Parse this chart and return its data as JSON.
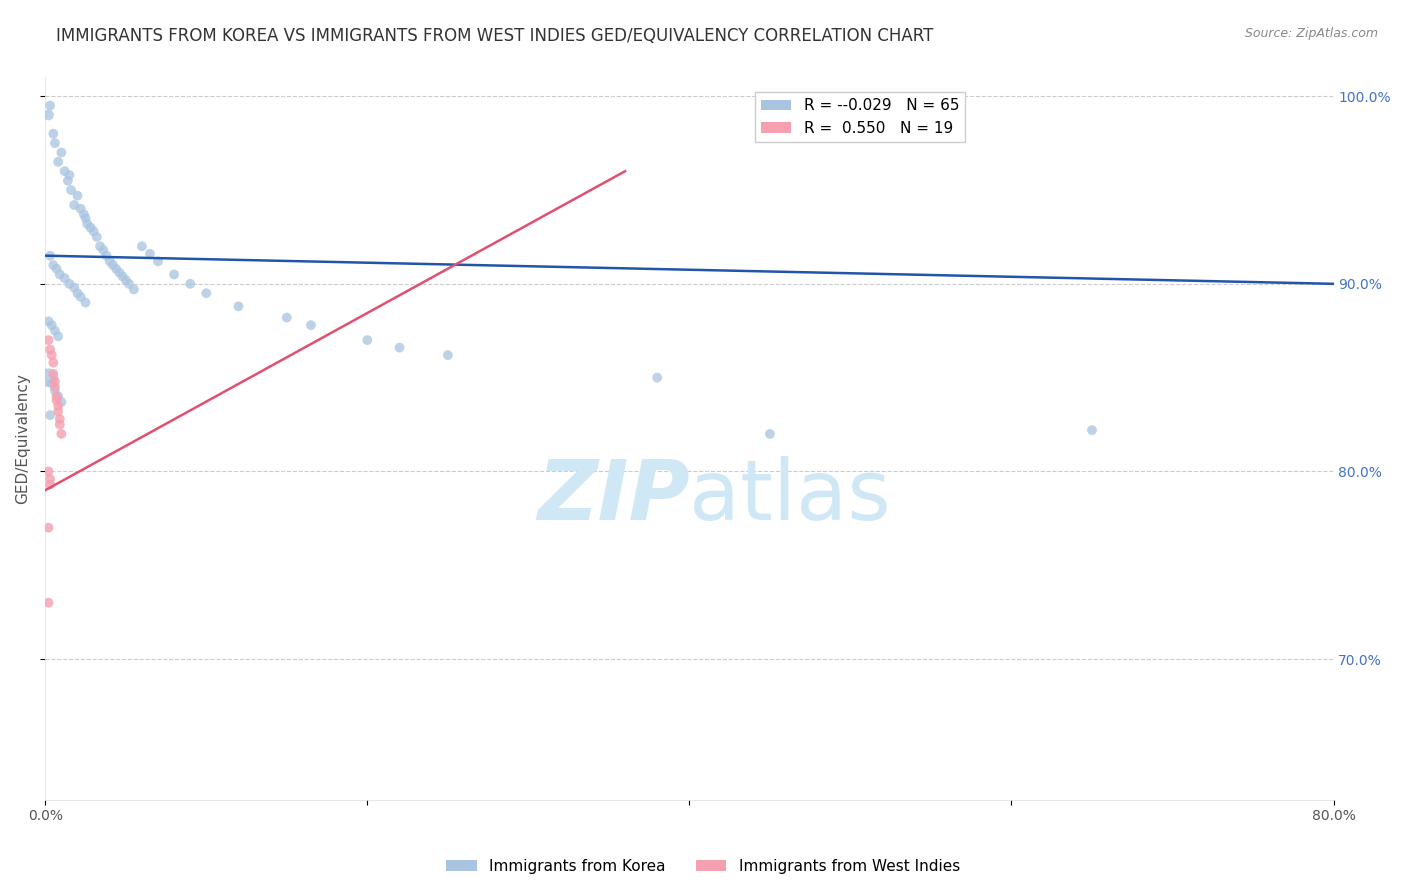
{
  "title": "IMMIGRANTS FROM KOREA VS IMMIGRANTS FROM WEST INDIES GED/EQUIVALENCY CORRELATION CHART",
  "source": "Source: ZipAtlas.com",
  "ylabel": "GED/Equivalency",
  "xlim": [
    0.0,
    0.8
  ],
  "ylim": [
    0.625,
    1.01
  ],
  "korea_color": "#a8c4e0",
  "westindies_color": "#f4a0b0",
  "korea_trend_color": "#2255aa",
  "westindies_trend_color": "#e05070",
  "grid_color": "#cccccc",
  "bg_color": "#ffffff",
  "title_fontsize": 12,
  "axis_label_fontsize": 11,
  "tick_fontsize": 10,
  "watermark_color": "#d0e8f5",
  "watermark_fontsize": 60,
  "right_axis_color": "#4472c4",
  "korea_R": "-0.029",
  "korea_N": "65",
  "wi_R": "0.550",
  "wi_N": "19",
  "korea_points": [
    [
      0.002,
      0.99
    ],
    [
      0.003,
      0.995
    ],
    [
      0.005,
      0.98
    ],
    [
      0.006,
      0.975
    ],
    [
      0.008,
      0.965
    ],
    [
      0.01,
      0.97
    ],
    [
      0.012,
      0.96
    ],
    [
      0.014,
      0.955
    ],
    [
      0.015,
      0.958
    ],
    [
      0.016,
      0.95
    ],
    [
      0.018,
      0.942
    ],
    [
      0.02,
      0.947
    ],
    [
      0.022,
      0.94
    ],
    [
      0.024,
      0.937
    ],
    [
      0.025,
      0.935
    ],
    [
      0.026,
      0.932
    ],
    [
      0.028,
      0.93
    ],
    [
      0.03,
      0.928
    ],
    [
      0.032,
      0.925
    ],
    [
      0.034,
      0.92
    ],
    [
      0.036,
      0.918
    ],
    [
      0.038,
      0.915
    ],
    [
      0.04,
      0.912
    ],
    [
      0.042,
      0.91
    ],
    [
      0.044,
      0.908
    ],
    [
      0.046,
      0.906
    ],
    [
      0.048,
      0.904
    ],
    [
      0.05,
      0.902
    ],
    [
      0.052,
      0.9
    ],
    [
      0.055,
      0.897
    ],
    [
      0.003,
      0.915
    ],
    [
      0.005,
      0.91
    ],
    [
      0.007,
      0.908
    ],
    [
      0.009,
      0.905
    ],
    [
      0.012,
      0.903
    ],
    [
      0.015,
      0.9
    ],
    [
      0.018,
      0.898
    ],
    [
      0.02,
      0.895
    ],
    [
      0.022,
      0.893
    ],
    [
      0.025,
      0.89
    ],
    [
      0.002,
      0.88
    ],
    [
      0.004,
      0.878
    ],
    [
      0.006,
      0.875
    ],
    [
      0.008,
      0.872
    ],
    [
      0.002,
      0.85
    ],
    [
      0.004,
      0.847
    ],
    [
      0.006,
      0.843
    ],
    [
      0.008,
      0.84
    ],
    [
      0.01,
      0.837
    ],
    [
      0.003,
      0.83
    ],
    [
      0.06,
      0.92
    ],
    [
      0.065,
      0.916
    ],
    [
      0.07,
      0.912
    ],
    [
      0.08,
      0.905
    ],
    [
      0.09,
      0.9
    ],
    [
      0.1,
      0.895
    ],
    [
      0.12,
      0.888
    ],
    [
      0.15,
      0.882
    ],
    [
      0.165,
      0.878
    ],
    [
      0.2,
      0.87
    ],
    [
      0.22,
      0.866
    ],
    [
      0.25,
      0.862
    ],
    [
      0.38,
      0.85
    ],
    [
      0.45,
      0.82
    ],
    [
      0.65,
      0.822
    ]
  ],
  "korea_sizes": [
    60,
    50,
    50,
    50,
    50,
    50,
    50,
    50,
    50,
    50,
    50,
    50,
    50,
    50,
    50,
    50,
    50,
    50,
    50,
    50,
    50,
    50,
    50,
    50,
    50,
    50,
    50,
    50,
    50,
    50,
    50,
    50,
    50,
    50,
    50,
    50,
    50,
    50,
    50,
    50,
    50,
    50,
    50,
    50,
    180,
    50,
    50,
    50,
    50,
    50,
    50,
    50,
    50,
    50,
    50,
    50,
    50,
    50,
    50,
    50,
    50,
    50,
    50,
    50,
    50
  ],
  "wi_points": [
    [
      0.002,
      0.87
    ],
    [
      0.003,
      0.865
    ],
    [
      0.004,
      0.862
    ],
    [
      0.005,
      0.858
    ],
    [
      0.005,
      0.852
    ],
    [
      0.006,
      0.848
    ],
    [
      0.006,
      0.845
    ],
    [
      0.007,
      0.84
    ],
    [
      0.007,
      0.838
    ],
    [
      0.008,
      0.835
    ],
    [
      0.008,
      0.832
    ],
    [
      0.009,
      0.828
    ],
    [
      0.009,
      0.825
    ],
    [
      0.01,
      0.82
    ],
    [
      0.002,
      0.8
    ],
    [
      0.003,
      0.796
    ],
    [
      0.003,
      0.793
    ],
    [
      0.002,
      0.77
    ],
    [
      0.002,
      0.73
    ]
  ],
  "wi_sizes": [
    50,
    50,
    50,
    50,
    50,
    50,
    50,
    50,
    50,
    50,
    50,
    50,
    50,
    50,
    50,
    50,
    50,
    50,
    50
  ],
  "korea_trend_x": [
    0.0,
    0.8
  ],
  "korea_trend_y": [
    0.915,
    0.9
  ],
  "wi_trend_x": [
    0.0,
    0.36
  ],
  "wi_trend_y": [
    0.79,
    0.96
  ]
}
